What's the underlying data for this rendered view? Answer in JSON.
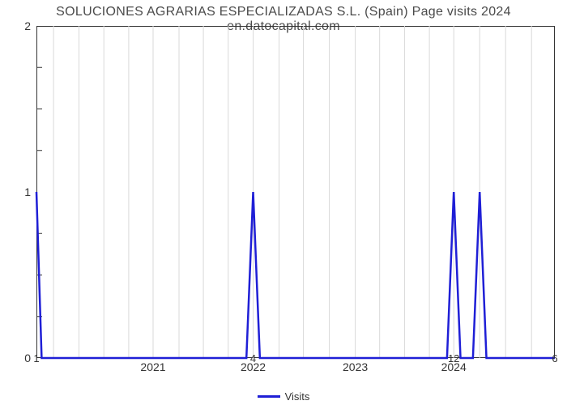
{
  "chart": {
    "type": "line",
    "title": "SOLUCIONES AGRARIAS ESPECIALIZADAS S.L. (Spain) Page visits 2024 en.datocapital.com",
    "title_fontsize": 16,
    "title_color": "#4a4a4a",
    "background_color": "#ffffff",
    "plot_border_color": "#333333",
    "grid_color": "#d9d9d9",
    "line_color": "#1f1fd6",
    "line_width": 2.5,
    "xlim": [
      0,
      1
    ],
    "ylim": [
      0,
      2
    ],
    "y_ticks": [
      0,
      1,
      2
    ],
    "y_minor_dashes": [
      0.25,
      0.5,
      0.75,
      1.25,
      1.5,
      1.75
    ],
    "x_major_labels": [
      "2021",
      "2022",
      "2023",
      "2024"
    ],
    "x_major_positions": [
      0.225,
      0.418,
      0.615,
      0.805
    ],
    "x_grid_positions": [
      0.033,
      0.082,
      0.13,
      0.178,
      0.225,
      0.275,
      0.322,
      0.37,
      0.418,
      0.468,
      0.515,
      0.565,
      0.615,
      0.662,
      0.71,
      0.758,
      0.805,
      0.855,
      0.905,
      0.955
    ],
    "bottom_numbers": [
      {
        "label": "1",
        "x": 0.0
      },
      {
        "label": "4",
        "x": 0.418
      },
      {
        "label": "12",
        "x": 0.805
      },
      {
        "label": "6",
        "x": 1.0
      }
    ],
    "series": {
      "name": "Visits",
      "points": [
        {
          "x": 0.0,
          "y": 1.0
        },
        {
          "x": 0.01,
          "y": 0.0
        },
        {
          "x": 0.405,
          "y": 0.0
        },
        {
          "x": 0.418,
          "y": 1.0
        },
        {
          "x": 0.431,
          "y": 0.0
        },
        {
          "x": 0.792,
          "y": 0.0
        },
        {
          "x": 0.805,
          "y": 1.0
        },
        {
          "x": 0.818,
          "y": 0.0
        },
        {
          "x": 0.842,
          "y": 0.0
        },
        {
          "x": 0.855,
          "y": 1.0
        },
        {
          "x": 0.868,
          "y": 0.0
        },
        {
          "x": 1.0,
          "y": 0.0
        }
      ]
    },
    "legend_label": "Visits"
  }
}
